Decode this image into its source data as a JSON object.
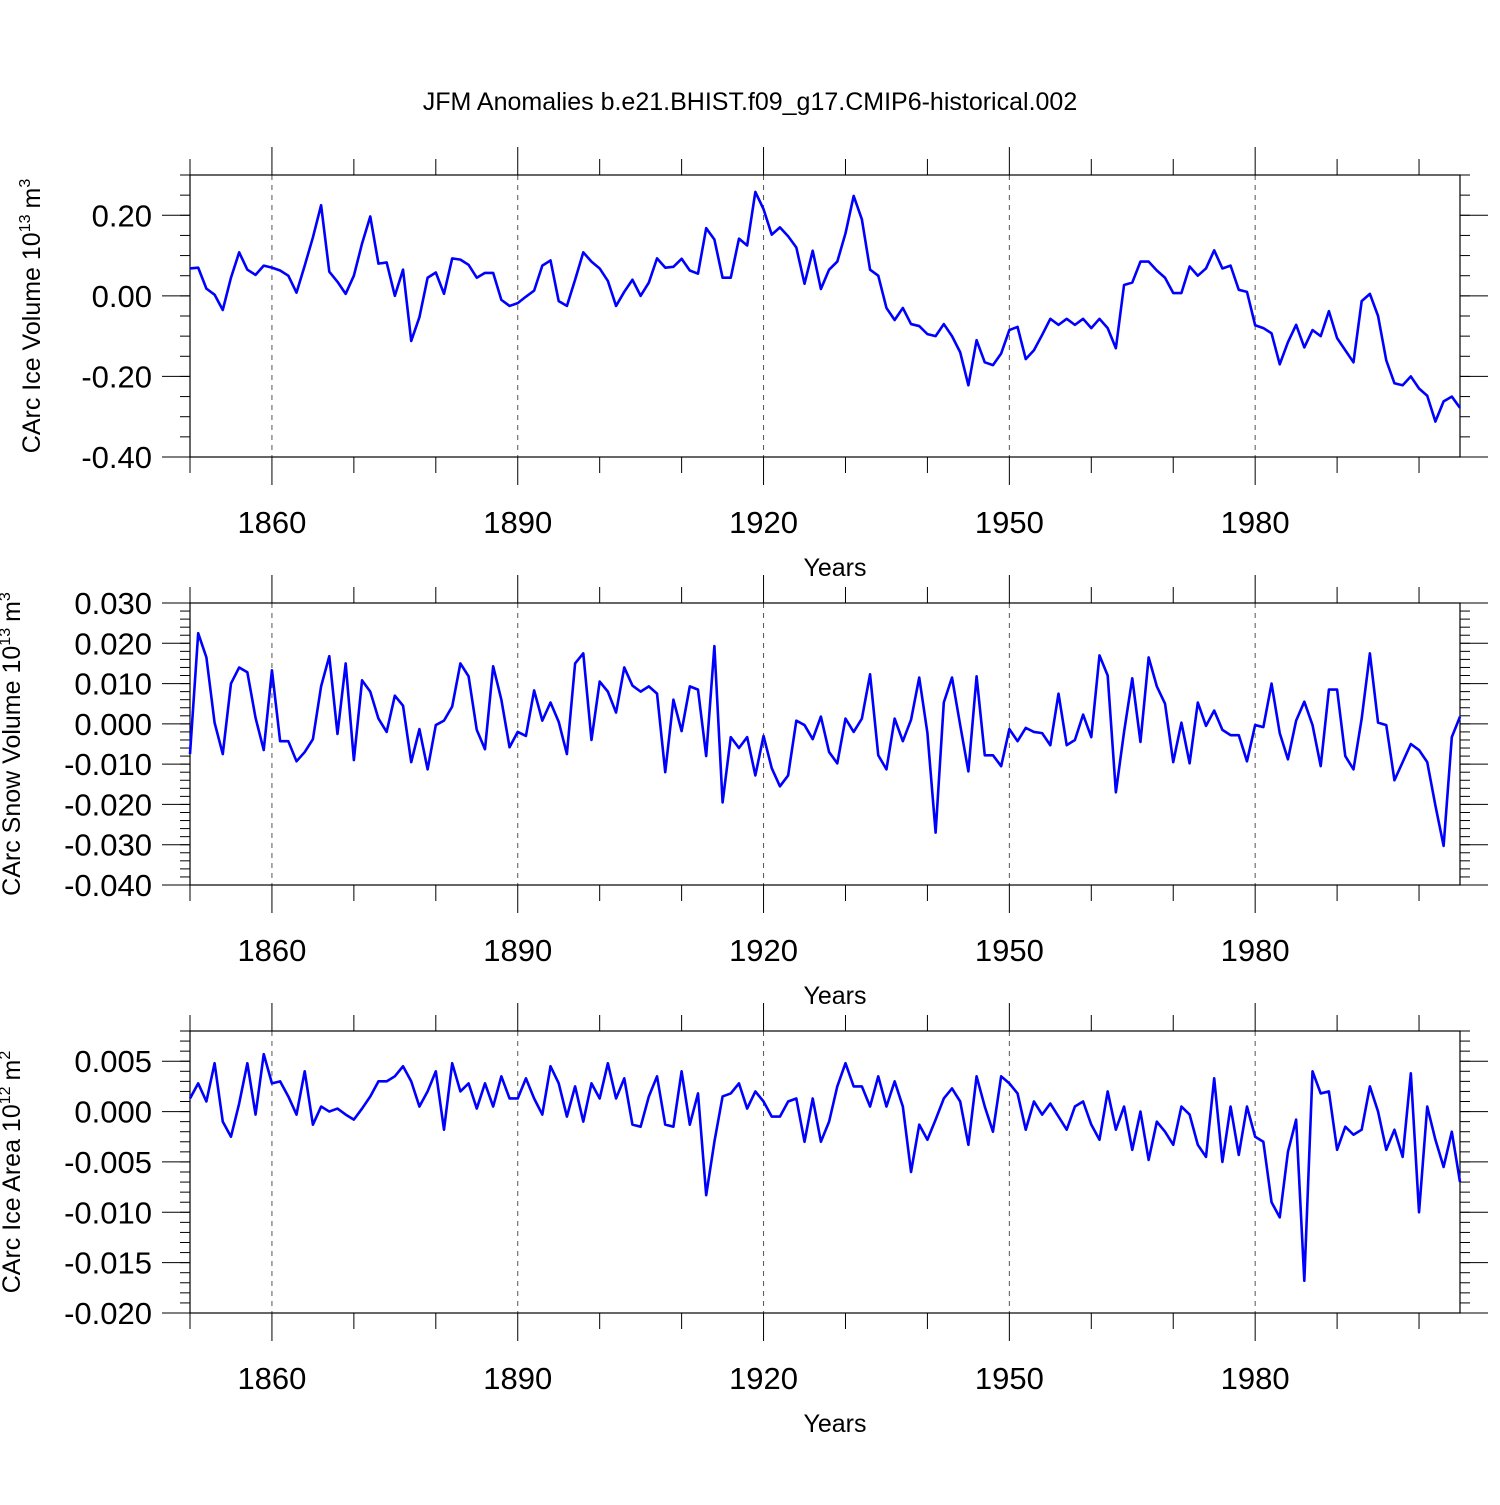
{
  "title": "JFM Anomalies b.e21.BHIST.f09_g17.CMIP6-historical.002",
  "line_color": "#0000ff",
  "chart_data": [
    {
      "type": "line",
      "ylabel": "CArc Ice Volume 10",
      "ylabel_exp": "13",
      "ylabel_unit": "m",
      "ylabel_unit_exp": "3",
      "xlabel": "Years",
      "xlim": [
        1850,
        2005
      ],
      "ylim": [
        -0.4,
        0.3
      ],
      "xticks": [
        1860,
        1890,
        1920,
        1950,
        1980
      ],
      "yticks": [
        -0.4,
        -0.2,
        0.0,
        0.2
      ],
      "ytick_labels": [
        "-0.40",
        "-0.20",
        "0.00",
        "0.20"
      ],
      "ytick_minor_step": 0.05,
      "x_start": 1850,
      "values": [
        0.068,
        0.07,
        0.018,
        0.003,
        -0.035,
        0.045,
        0.108,
        0.065,
        0.052,
        0.075,
        0.07,
        0.063,
        0.05,
        0.008,
        0.075,
        0.145,
        0.225,
        0.06,
        0.035,
        0.005,
        0.05,
        0.13,
        0.197,
        0.08,
        0.083,
        0.0,
        0.065,
        -0.112,
        -0.053,
        0.045,
        0.058,
        0.005,
        0.093,
        0.09,
        0.077,
        0.045,
        0.057,
        0.057,
        -0.01,
        -0.025,
        -0.018,
        -0.002,
        0.013,
        0.075,
        0.088,
        -0.013,
        -0.025,
        0.04,
        0.108,
        0.085,
        0.068,
        0.037,
        -0.025,
        0.01,
        0.04,
        0.0,
        0.033,
        0.093,
        0.07,
        0.072,
        0.092,
        0.063,
        0.055,
        0.168,
        0.14,
        0.045,
        0.045,
        0.142,
        0.125,
        0.258,
        0.215,
        0.152,
        0.17,
        0.148,
        0.12,
        0.03,
        0.112,
        0.017,
        0.065,
        0.085,
        0.155,
        0.248,
        0.19,
        0.065,
        0.05,
        -0.03,
        -0.06,
        -0.03,
        -0.07,
        -0.075,
        -0.095,
        -0.1,
        -0.07,
        -0.1,
        -0.14,
        -0.222,
        -0.11,
        -0.165,
        -0.172,
        -0.143,
        -0.085,
        -0.077,
        -0.157,
        -0.135,
        -0.097,
        -0.057,
        -0.072,
        -0.057,
        -0.072,
        -0.057,
        -0.08,
        -0.057,
        -0.08,
        -0.13,
        0.027,
        0.033,
        0.085,
        0.085,
        0.063,
        0.045,
        0.007,
        0.007,
        0.073,
        0.05,
        0.068,
        0.113,
        0.068,
        0.075,
        0.015,
        0.01,
        -0.073,
        -0.08,
        -0.093,
        -0.17,
        -0.115,
        -0.072,
        -0.128,
        -0.085,
        -0.1,
        -0.038,
        -0.105,
        -0.135,
        -0.165,
        -0.013,
        0.005,
        -0.05,
        -0.16,
        -0.217,
        -0.222,
        -0.2,
        -0.23,
        -0.248,
        -0.312,
        -0.262,
        -0.25,
        -0.278
      ]
    },
    {
      "type": "line",
      "ylabel": "CArc Snow Volume 10",
      "ylabel_exp": "13",
      "ylabel_unit": "m",
      "ylabel_unit_exp": "3",
      "xlabel": "Years",
      "xlim": [
        1850,
        2005
      ],
      "ylim": [
        -0.04,
        0.03
      ],
      "xticks": [
        1860,
        1890,
        1920,
        1950,
        1980
      ],
      "yticks": [
        -0.04,
        -0.03,
        -0.02,
        -0.01,
        0.0,
        0.01,
        0.02,
        0.03
      ],
      "ytick_labels": [
        "-0.040",
        "-0.030",
        "-0.020",
        "-0.010",
        "0.000",
        "0.010",
        "0.020",
        "0.030"
      ],
      "ytick_minor_step": 0.002,
      "x_start": 1850,
      "values": [
        -0.0075,
        0.0225,
        0.0165,
        0.0003,
        -0.0075,
        0.01,
        0.014,
        0.0128,
        0.0015,
        -0.0065,
        0.0133,
        -0.0043,
        -0.0043,
        -0.0093,
        -0.007,
        -0.0038,
        0.0093,
        0.0168,
        -0.0025,
        0.015,
        -0.009,
        0.0108,
        0.008,
        0.0013,
        -0.002,
        0.007,
        0.0045,
        -0.0095,
        -0.0013,
        -0.0113,
        -0.0003,
        0.0008,
        0.0043,
        0.015,
        0.0118,
        -0.0015,
        -0.0063,
        0.0143,
        0.006,
        -0.0058,
        -0.002,
        -0.003,
        0.0083,
        0.0008,
        0.0053,
        0.0005,
        -0.0075,
        0.015,
        0.0175,
        -0.004,
        0.0105,
        0.008,
        0.0028,
        0.014,
        0.0095,
        0.008,
        0.0093,
        0.0075,
        -0.012,
        0.006,
        -0.0018,
        0.0093,
        0.0085,
        -0.008,
        0.0193,
        -0.0195,
        -0.0033,
        -0.006,
        -0.0033,
        -0.0128,
        -0.003,
        -0.011,
        -0.0155,
        -0.0128,
        0.0008,
        -0.0003,
        -0.0038,
        0.0018,
        -0.007,
        -0.0098,
        0.0013,
        -0.002,
        0.0013,
        0.0123,
        -0.0078,
        -0.0113,
        0.0013,
        -0.0043,
        0.001,
        0.0115,
        -0.0023,
        -0.027,
        0.0053,
        0.0115,
        -0.0003,
        -0.0118,
        0.0118,
        -0.0078,
        -0.0078,
        -0.0105,
        -0.0013,
        -0.0043,
        -0.001,
        -0.002,
        -0.0023,
        -0.0053,
        0.0075,
        -0.0053,
        -0.004,
        0.0023,
        -0.0033,
        0.017,
        0.012,
        -0.017,
        -0.002,
        0.0113,
        -0.0045,
        0.0165,
        0.0093,
        0.005,
        -0.0095,
        0.0003,
        -0.0098,
        0.0053,
        -0.0005,
        0.0033,
        -0.0015,
        -0.0028,
        -0.0028,
        -0.0093,
        -0.0003,
        -0.0008,
        0.01,
        -0.0023,
        -0.0088,
        0.0008,
        0.0055,
        -0.0003,
        -0.0105,
        0.0085,
        0.0085,
        -0.008,
        -0.0113,
        0.0013,
        0.0175,
        0.0003,
        -0.0003,
        -0.014,
        -0.0095,
        -0.005,
        -0.0065,
        -0.0095,
        -0.0203,
        -0.0303,
        -0.0033,
        0.0018
      ]
    },
    {
      "type": "line",
      "ylabel": "CArc Ice Area 10",
      "ylabel_exp": "12",
      "ylabel_unit": "m",
      "ylabel_unit_exp": "2",
      "xlabel": "Years",
      "xlim": [
        1850,
        2005
      ],
      "ylim": [
        -0.02,
        0.008
      ],
      "xticks": [
        1860,
        1890,
        1920,
        1950,
        1980
      ],
      "yticks": [
        -0.02,
        -0.015,
        -0.01,
        -0.005,
        0.0,
        0.005
      ],
      "ytick_labels": [
        "-0.020",
        "-0.015",
        "-0.010",
        "-0.005",
        "0.000",
        "0.005"
      ],
      "ytick_minor_step": 0.001,
      "x_start": 1850,
      "values": [
        0.0013,
        0.0028,
        0.001,
        0.0048,
        -0.001,
        -0.0025,
        0.0008,
        0.0048,
        -0.0003,
        0.0057,
        0.0028,
        0.003,
        0.0015,
        -0.0003,
        0.004,
        -0.0013,
        0.0005,
        0.0,
        0.0003,
        -0.0003,
        -0.0008,
        0.0003,
        0.0015,
        0.003,
        0.003,
        0.0035,
        0.0045,
        0.003,
        0.0005,
        0.002,
        0.004,
        -0.0018,
        0.0048,
        0.002,
        0.0028,
        0.0003,
        0.0028,
        0.0005,
        0.0035,
        0.0013,
        0.0013,
        0.0033,
        0.0013,
        -0.0003,
        0.0045,
        0.0028,
        -0.0005,
        0.0025,
        -0.001,
        0.0028,
        0.0013,
        0.0048,
        0.0013,
        0.0033,
        -0.0013,
        -0.0015,
        0.0015,
        0.0035,
        -0.0013,
        -0.0015,
        0.004,
        -0.0013,
        0.0018,
        -0.0083,
        -0.003,
        0.0015,
        0.0018,
        0.0028,
        0.0003,
        0.002,
        0.001,
        -0.0005,
        -0.0005,
        0.001,
        0.0013,
        -0.003,
        0.0013,
        -0.003,
        -0.001,
        0.0025,
        0.0048,
        0.0025,
        0.0025,
        0.0005,
        0.0035,
        0.0005,
        0.003,
        0.0005,
        -0.006,
        -0.0013,
        -0.0028,
        -0.0008,
        0.0013,
        0.0023,
        0.001,
        -0.0033,
        0.0035,
        0.0005,
        -0.002,
        0.0035,
        0.0028,
        0.0018,
        -0.0018,
        0.001,
        -0.0003,
        0.0008,
        -0.0005,
        -0.0018,
        0.0005,
        0.001,
        -0.0013,
        -0.0028,
        0.002,
        -0.0018,
        0.0005,
        -0.0038,
        0.0,
        -0.0048,
        -0.001,
        -0.002,
        -0.0033,
        0.0005,
        -0.0003,
        -0.0033,
        -0.0045,
        0.0033,
        -0.005,
        0.0005,
        -0.0043,
        0.0005,
        -0.0025,
        -0.003,
        -0.009,
        -0.0105,
        -0.004,
        -0.0008,
        -0.0168,
        0.004,
        0.0018,
        0.002,
        -0.0038,
        -0.0015,
        -0.0023,
        -0.0018,
        0.0025,
        0.0,
        -0.0038,
        -0.0018,
        -0.0045,
        0.0038,
        -0.01,
        0.0005,
        -0.0028,
        -0.0055,
        -0.002,
        -0.007
      ]
    }
  ]
}
